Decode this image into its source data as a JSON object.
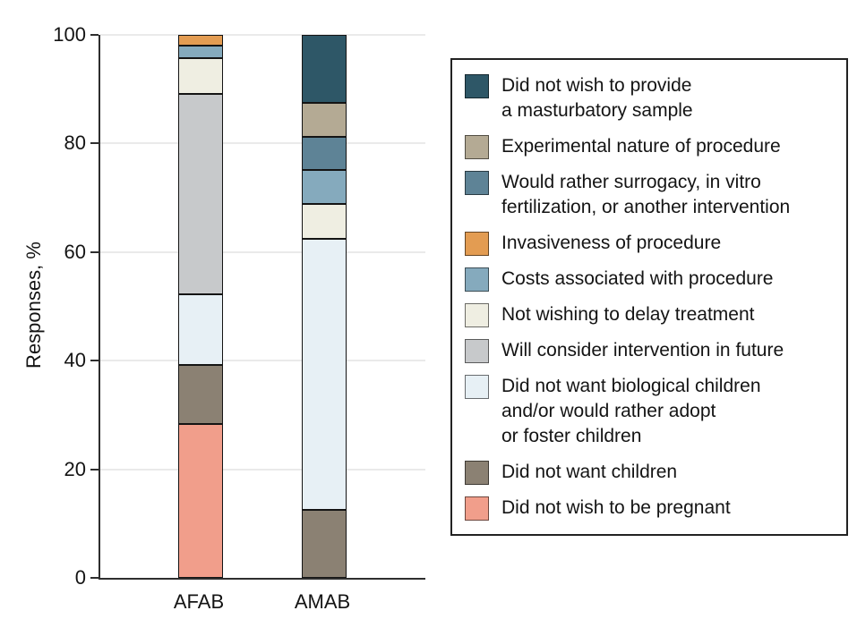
{
  "chart_data": {
    "type": "stacked_bar",
    "title": "",
    "ylabel": "Responses, %",
    "xlabel": "",
    "ylim": [
      0,
      100
    ],
    "yticks": [
      0,
      20,
      40,
      60,
      80,
      100
    ],
    "grid": "horizontal",
    "legend_position": "right",
    "legend_order": "reverse-of-series",
    "categories": [
      "AFAB",
      "AMAB"
    ],
    "series": [
      {
        "name": "Did not wish to be pregnant",
        "color": "#f19e8b",
        "values": [
          28.3,
          0
        ],
        "legend_lines": [
          "Did not wish to be pregnant"
        ]
      },
      {
        "name": "Did not want children",
        "color": "#8b8173",
        "values": [
          10.9,
          12.5
        ],
        "legend_lines": [
          "Did not want children"
        ]
      },
      {
        "name": "Did not want biological children and/or would rather adopt or foster children",
        "color": "#e7f0f5",
        "values": [
          13.1,
          50.0
        ],
        "legend_lines": [
          "Did not want biological children",
          "and/or would rather adopt",
          "or foster children"
        ]
      },
      {
        "name": "Will consider intervention in future",
        "color": "#c7c9cb",
        "values": [
          36.8,
          0
        ],
        "legend_lines": [
          "Will consider intervention in future"
        ]
      },
      {
        "name": "Not wishing to delay treatment",
        "color": "#efeee2",
        "values": [
          6.7,
          6.3
        ],
        "legend_lines": [
          "Not wishing to delay treatment"
        ]
      },
      {
        "name": "Costs associated with procedure",
        "color": "#85aabd",
        "values": [
          2.2,
          6.3
        ],
        "legend_lines": [
          "Costs associated with procedure"
        ]
      },
      {
        "name": "Invasiveness of procedure",
        "color": "#e39c52",
        "values": [
          2.0,
          0
        ],
        "legend_lines": [
          "Invasiveness of procedure"
        ]
      },
      {
        "name": "Would rather surrogacy, in vitro fertilization, or another intervention",
        "color": "#5e8396",
        "values": [
          0,
          6.2
        ],
        "legend_lines": [
          "Would rather surrogacy, in vitro",
          "fertilization, or another intervention"
        ]
      },
      {
        "name": "Experimental nature of procedure",
        "color": "#b4aa94",
        "values": [
          0,
          6.2
        ],
        "legend_lines": [
          "Experimental nature of procedure"
        ]
      },
      {
        "name": "Did not wish to provide a masturbatory sample",
        "color": "#2e5767",
        "values": [
          0,
          12.5
        ],
        "legend_lines": [
          "Did not wish to provide",
          "a masturbatory sample"
        ]
      }
    ]
  }
}
